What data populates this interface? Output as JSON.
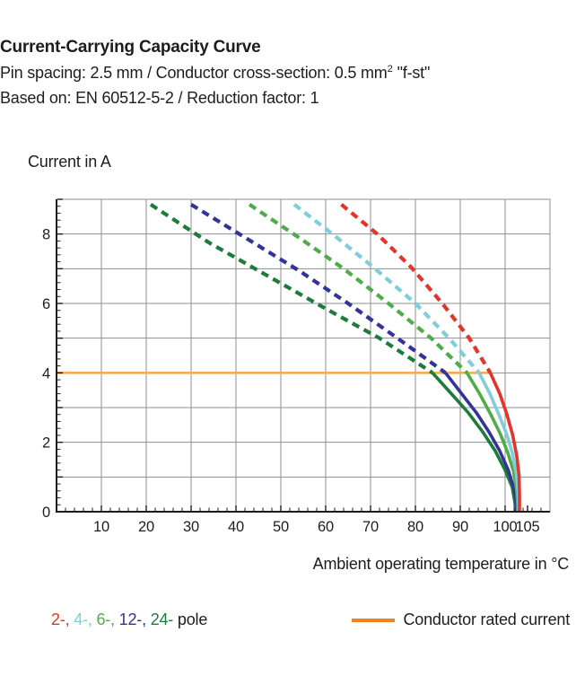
{
  "header": {
    "title": "Current-Carrying Capacity Curve",
    "subtitle_prefix": "Pin spacing: 2.5 mm / Conductor cross-section: 0.5 mm",
    "subtitle_sup": "2",
    "subtitle_suffix": " \"f-st\"",
    "subtitle2": "Based on: EN 60512-5-2 / Reduction factor: 1"
  },
  "chart_data": {
    "type": "line",
    "title": "Current-Carrying Capacity Curve",
    "xlabel": "Ambient operating temperature in °C",
    "ylabel": "Current in A",
    "xlim": [
      0,
      110
    ],
    "ylim": [
      0,
      9
    ],
    "grid": true,
    "x_major_ticks": [
      10,
      20,
      30,
      40,
      50,
      60,
      70,
      80,
      90,
      100,
      105
    ],
    "x_grid_ticks": [
      10,
      20,
      30,
      40,
      50,
      60,
      70,
      80,
      90,
      100
    ],
    "x_minor_step": 2,
    "y_tick_labels": [
      0,
      2,
      4,
      6,
      8
    ],
    "y_grid_step": 1,
    "y_minor_step": 0.2,
    "colors": {
      "grid": "#8f8f8f",
      "axis": "#1d1d1b",
      "text": "#1d1d1b"
    },
    "rated_current": {
      "label": "Conductor rated current",
      "value": 4.0,
      "x_start": 0,
      "x_end": 97,
      "line_color": "#F3AC55",
      "legend_color": "#EE8125"
    },
    "series": [
      {
        "name": "24-pole",
        "color": "#1E7B3B",
        "dashed_points": [
          [
            21,
            8.85
          ],
          [
            34,
            7.75
          ],
          [
            47,
            6.8
          ],
          [
            60,
            5.85
          ],
          [
            72,
            5.0
          ],
          [
            83.8,
            4.0
          ]
        ],
        "solid_points": [
          [
            83.8,
            4.0
          ],
          [
            88,
            3.4
          ],
          [
            91.8,
            2.85
          ],
          [
            95,
            2.3
          ],
          [
            97.8,
            1.75
          ],
          [
            100,
            1.2
          ],
          [
            101.6,
            0.7
          ],
          [
            102.2,
            0.25
          ],
          [
            102.3,
            0
          ]
        ]
      },
      {
        "name": "12-pole",
        "color": "#34339A",
        "dashed_points": [
          [
            30,
            8.85
          ],
          [
            42,
            7.9
          ],
          [
            54,
            6.95
          ],
          [
            65,
            6.0
          ],
          [
            76,
            5.0
          ],
          [
            86.7,
            4.0
          ]
        ],
        "solid_points": [
          [
            86.7,
            4.0
          ],
          [
            90.3,
            3.4
          ],
          [
            93.6,
            2.85
          ],
          [
            96.4,
            2.3
          ],
          [
            98.8,
            1.75
          ],
          [
            100.7,
            1.2
          ],
          [
            102.0,
            0.65
          ],
          [
            102.55,
            0.2
          ],
          [
            102.6,
            0
          ]
        ]
      },
      {
        "name": "6-pole",
        "color": "#4FAD49",
        "dashed_points": [
          [
            43,
            8.85
          ],
          [
            54,
            7.9
          ],
          [
            64,
            7.0
          ],
          [
            74,
            6.0
          ],
          [
            83.5,
            5.0
          ],
          [
            91.5,
            4.0
          ]
        ],
        "solid_points": [
          [
            91.5,
            4.0
          ],
          [
            94.3,
            3.4
          ],
          [
            96.8,
            2.8
          ],
          [
            98.9,
            2.25
          ],
          [
            100.6,
            1.7
          ],
          [
            101.9,
            1.15
          ],
          [
            102.6,
            0.6
          ],
          [
            102.8,
            0.2
          ],
          [
            102.8,
            0
          ]
        ]
      },
      {
        "name": "4-pole",
        "color": "#7FCEDB",
        "dashed_points": [
          [
            53,
            8.85
          ],
          [
            62,
            7.95
          ],
          [
            71,
            7.0
          ],
          [
            80,
            6.0
          ],
          [
            87.5,
            5.0
          ],
          [
            94.2,
            4.0
          ]
        ],
        "solid_points": [
          [
            94.2,
            4.0
          ],
          [
            96.6,
            3.4
          ],
          [
            98.6,
            2.8
          ],
          [
            100.3,
            2.25
          ],
          [
            101.6,
            1.7
          ],
          [
            102.5,
            1.1
          ],
          [
            102.9,
            0.55
          ],
          [
            103.0,
            0.2
          ],
          [
            103.0,
            0
          ]
        ]
      },
      {
        "name": "2-pole",
        "color": "#E3352B",
        "dashed_points": [
          [
            63.5,
            8.85
          ],
          [
            71.5,
            8.0
          ],
          [
            79,
            7.05
          ],
          [
            86,
            6.0
          ],
          [
            92,
            5.0
          ],
          [
            96.7,
            4.0
          ]
        ],
        "solid_points": [
          [
            96.7,
            4.0
          ],
          [
            98.8,
            3.4
          ],
          [
            100.4,
            2.8
          ],
          [
            101.7,
            2.2
          ],
          [
            102.6,
            1.6
          ],
          [
            103.1,
            1.05
          ],
          [
            103.2,
            0.5
          ],
          [
            103.2,
            0
          ]
        ]
      }
    ]
  },
  "legend": {
    "poles": [
      {
        "label": "2-",
        "color": "#E3352B"
      },
      {
        "label": "4-",
        "color": "#7FCEDB"
      },
      {
        "label": "6-",
        "color": "#4FAD49"
      },
      {
        "label": "12-",
        "color": "#34339A"
      },
      {
        "label": "24-",
        "color": "#1E7B3B"
      }
    ],
    "poles_suffix": "pole",
    "rated_label": "Conductor rated current"
  }
}
